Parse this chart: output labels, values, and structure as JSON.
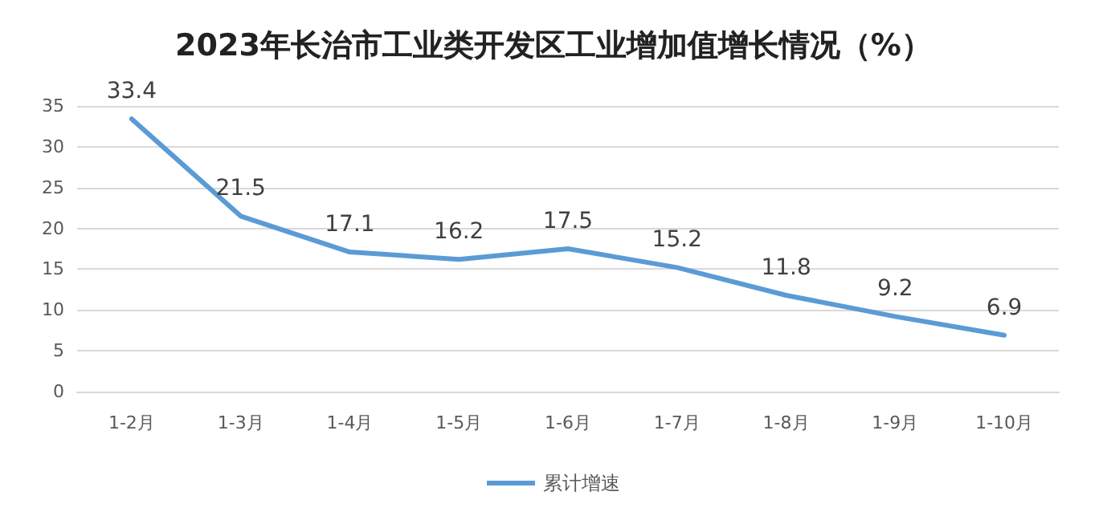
{
  "chart_data": {
    "type": "line",
    "title": "2023年长治市工业类开发区工业增加值增长情况（%）",
    "categories": [
      "1-2月",
      "1-3月",
      "1-4月",
      "1-5月",
      "1-6月",
      "1-7月",
      "1-8月",
      "1-9月",
      "1-10月"
    ],
    "series": [
      {
        "name": "累计增速",
        "color": "#5b9bd5",
        "values": [
          33.4,
          21.5,
          17.1,
          16.2,
          17.5,
          15.2,
          11.8,
          9.2,
          6.9
        ]
      }
    ],
    "ylim": [
      0,
      35
    ],
    "yticks": [
      0,
      5,
      10,
      15,
      20,
      25,
      30,
      35
    ],
    "grid": "y",
    "legend": "bottom",
    "data_labels": true,
    "marker": "none",
    "line_style": "solid"
  }
}
